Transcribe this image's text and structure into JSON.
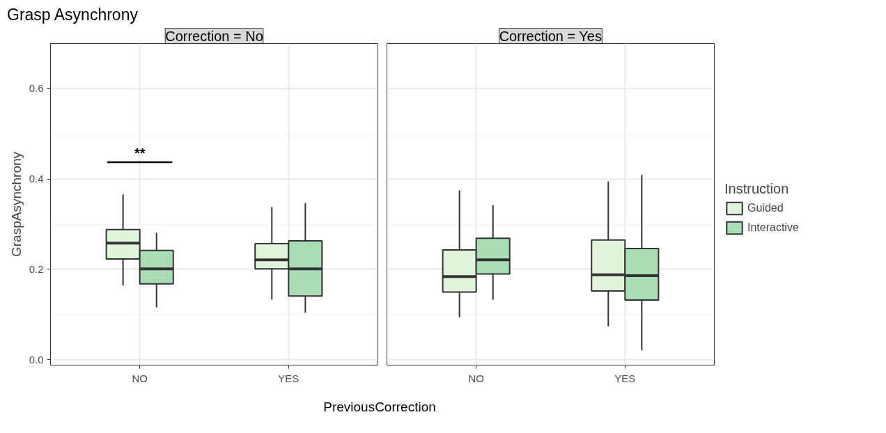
{
  "chart_data": [
    {
      "type": "box",
      "title": "Grasp Asynchrony",
      "subtitle": "Correction = No",
      "xlabel": "PreviousCorrection",
      "ylabel": "GraspAsynchrony",
      "categories": [
        "NO",
        "YES"
      ],
      "ylim": [
        -0.012,
        0.7
      ],
      "yticks": [
        {
          "value": 0,
          "label": "0.0"
        },
        {
          "value": 0.2,
          "label": "0.2"
        },
        {
          "value": 0.4,
          "label": "0.4"
        },
        {
          "value": 0.6,
          "label": "0.6"
        }
      ],
      "grid": true,
      "series": [
        {
          "color": "#e0f3db",
          "boxes": [
            {
              "low": 0.164,
              "q1": 0.223,
              "median": 0.258,
              "q3": 0.288,
              "high": 0.366
            },
            {
              "low": 0.133,
              "q1": 0.201,
              "median": 0.221,
              "q3": 0.257,
              "high": 0.338
            }
          ]
        },
        {
          "color": "#a8ddb5",
          "boxes": [
            {
              "low": 0.116,
              "q1": 0.168,
              "median": 0.201,
              "q3": 0.242,
              "high": 0.281
            },
            {
              "low": 0.104,
              "q1": 0.141,
              "median": 0.201,
              "q3": 0.263,
              "high": 0.347
            }
          ]
        }
      ],
      "annotations": [
        "**"
      ]
    },
    {
      "type": "box",
      "subtitle": "Correction = Yes",
      "categories": [
        "NO",
        "YES"
      ],
      "ylim": [
        -0.012,
        0.7
      ],
      "yticks": [
        0,
        0.2,
        0.4,
        0.6
      ],
      "grid": true,
      "legend": "right",
      "legend_title": "Instruction",
      "tick_labels": "x",
      "series": [
        {
          "name": "Guided",
          "color": "#e0f3db",
          "boxes": [
            {
              "low": 0.094,
              "q1": 0.15,
              "median": 0.184,
              "q3": 0.243,
              "high": 0.375
            },
            {
              "low": 0.074,
              "q1": 0.152,
              "median": 0.188,
              "q3": 0.265,
              "high": 0.395
            }
          ]
        },
        {
          "name": "Interactive",
          "color": "#a8ddb5",
          "boxes": [
            {
              "low": 0.133,
              "q1": 0.19,
              "median": 0.221,
              "q3": 0.269,
              "high": 0.342
            },
            {
              "low": 0.021,
              "q1": 0.132,
              "median": 0.186,
              "q3": 0.246,
              "high": 0.409
            }
          ]
        }
      ]
    }
  ]
}
